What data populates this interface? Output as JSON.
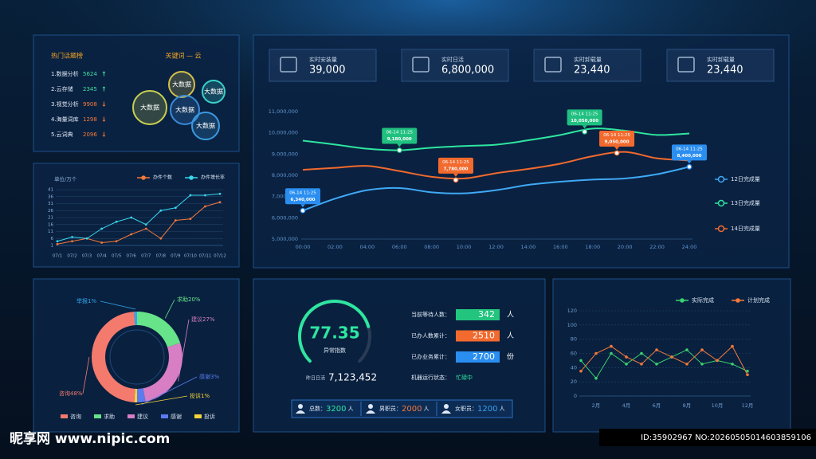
{
  "hot_topics": {
    "title": "热门话题榜",
    "items": [
      {
        "label": "1.数据分析",
        "value": "5624",
        "arrow": "↑",
        "color": "#3ee0a0"
      },
      {
        "label": "2.云存储",
        "value": "2345",
        "arrow": "↑",
        "color": "#3ee0a0"
      },
      {
        "label": "3.视觉分析",
        "value": "9908",
        "arrow": "↓",
        "color": "#f5793a"
      },
      {
        "label": "4.海量词库",
        "value": "1298",
        "arrow": "↓",
        "color": "#f5793a"
      },
      {
        "label": "5.云词典",
        "value": "2096",
        "arrow": "↓",
        "color": "#f5793a"
      }
    ]
  },
  "keyword_cloud": {
    "title": "关键词 — 云",
    "bubbles": [
      "大数据",
      "大数据",
      "大数据",
      "大数据",
      "大数据"
    ]
  },
  "stats": [
    {
      "label": "实时安装量",
      "value": "39,000"
    },
    {
      "label": "实时日活",
      "value": "6,800,000"
    },
    {
      "label": "实时卸载量",
      "value": "23,440"
    },
    {
      "label": "实时卸载量",
      "value": "23,440"
    }
  ],
  "chart_data": [
    {
      "type": "line",
      "y_unit_label": "单位/万个",
      "categories": [
        "07/1",
        "07/2",
        "07/3",
        "07/4",
        "07/5",
        "07/6",
        "07/7",
        "07/8",
        "07/9",
        "07/10",
        "07/11",
        "07/12"
      ],
      "series": [
        {
          "name": "办件个数",
          "color": "#f5793a",
          "values": [
            2,
            4,
            6,
            3,
            4,
            9,
            13,
            6,
            19,
            20,
            29,
            32
          ]
        },
        {
          "name": "办件增长率",
          "color": "#3ad8f0",
          "values": [
            4,
            7,
            6,
            13,
            18,
            21,
            16,
            26,
            28,
            37,
            37,
            38
          ]
        }
      ],
      "ylim": [
        1,
        41
      ],
      "yticks": [
        1,
        6,
        11,
        16,
        21,
        26,
        31,
        36,
        41
      ],
      "grid": true
    },
    {
      "type": "line",
      "x": [
        0,
        2,
        4,
        6,
        8,
        10,
        12,
        14,
        16,
        18,
        20,
        22,
        24
      ],
      "xlim": [
        0,
        24
      ],
      "xticks": [
        {
          "value": 0,
          "label": "00:00"
        },
        {
          "value": 2,
          "label": "02:00"
        },
        {
          "value": 4,
          "label": "04:00"
        },
        {
          "value": 6,
          "label": "06:00"
        },
        {
          "value": 8,
          "label": "08:00"
        },
        {
          "value": 10,
          "label": "10:00"
        },
        {
          "value": 12,
          "label": "12:00"
        },
        {
          "value": 14,
          "label": "14:00"
        },
        {
          "value": 16,
          "label": "16:00"
        },
        {
          "value": 18,
          "label": "18:00"
        },
        {
          "value": 20,
          "label": "20:00"
        },
        {
          "value": 22,
          "label": "22:00"
        },
        {
          "value": 24,
          "label": "24:00"
        }
      ],
      "ylim": [
        5000000,
        11000000
      ],
      "yticks": [
        {
          "value": 5000000,
          "label": "5,000,000"
        },
        {
          "value": 6000000,
          "label": "6,000,000"
        },
        {
          "value": 7000000,
          "label": "7,000,000"
        },
        {
          "value": 8000000,
          "label": "8,000,000"
        },
        {
          "value": 9000000,
          "label": "9,000,000"
        },
        {
          "value": 10000000,
          "label": "10,000,000"
        },
        {
          "value": 11000000,
          "label": "11,000,000"
        }
      ],
      "series": [
        {
          "name": "12日完成量",
          "color": "#3fa9f5",
          "values": [
            6340000,
            6900000,
            7300000,
            7400000,
            7200000,
            7150000,
            7300000,
            7550000,
            7700000,
            7800000,
            7850000,
            8050000,
            8400000
          ]
        },
        {
          "name": "13日完成量",
          "color": "#2ee6a0",
          "values": [
            9630000,
            9450000,
            9250000,
            9180000,
            9300000,
            9380000,
            9440000,
            9650000,
            9900000,
            10200000,
            10100000,
            9900000,
            9970000
          ]
        },
        {
          "name": "14日完成量",
          "color": "#f26a2e",
          "values": [
            8260000,
            8350000,
            8440000,
            8200000,
            7930000,
            7850000,
            8100000,
            8300000,
            8550000,
            8900000,
            9100000,
            8800000,
            8700000
          ]
        }
      ],
      "annotations": [
        {
          "time": "06-14 11:25",
          "x": 0,
          "value": 6340000,
          "label": "6,340,000",
          "color": "#2a8ef0"
        },
        {
          "time": "06-14 11:25",
          "x": 6,
          "value": 9180000,
          "label": "9,180,000",
          "color": "#20c080"
        },
        {
          "time": "06-14 11:25",
          "x": 9.5,
          "value": 7780000,
          "label": "7,780,000",
          "color": "#f26a2e"
        },
        {
          "time": "06-14 11:25",
          "x": 17.5,
          "value": 10050000,
          "label": "10,050,000",
          "color": "#20c080"
        },
        {
          "time": "06-14 11:25",
          "x": 19.5,
          "value": 9050000,
          "label": "9,050,000",
          "color": "#f26a2e"
        },
        {
          "time": "06-14 11:25",
          "x": 24,
          "value": 8400000,
          "label": "8,400,000",
          "color": "#2a8ef0"
        }
      ],
      "grid": false
    },
    {
      "type": "pie",
      "donut": true,
      "categories": [
        "求助",
        "建议",
        "感谢",
        "投诉",
        "咨询",
        "举报"
      ],
      "values": [
        20,
        27,
        3,
        1,
        48,
        1
      ],
      "value_labels": [
        "20%",
        "27%",
        "3%",
        "1%",
        "48%",
        "1%"
      ],
      "colors": [
        "#67e38a",
        "#d77ec4",
        "#5b7cf0",
        "#f5d33a",
        "#f47a6e",
        "#2fa8f0"
      ]
    },
    {
      "type": "gauge",
      "value": 77.35,
      "ylim": [
        0,
        100
      ],
      "label": "异常指数",
      "color": "#2ee6a0",
      "yesterday_label": "昨日日活",
      "yesterday_value": "7,123,452"
    },
    {
      "type": "line",
      "categories": [
        null,
        "2月",
        null,
        "4月",
        null,
        "6月",
        null,
        "8月",
        null,
        "10月",
        null,
        "12月"
      ],
      "series": [
        {
          "name": "实际完成",
          "color": "#3bd16f",
          "values": [
            50,
            25,
            60,
            45,
            60,
            45,
            55,
            65,
            45,
            50,
            45,
            35
          ]
        },
        {
          "name": "计划完成",
          "color": "#f5793a",
          "values": [
            35,
            60,
            70,
            55,
            45,
            65,
            55,
            45,
            65,
            50,
            70,
            30
          ]
        }
      ],
      "ylim": [
        0,
        120
      ],
      "yticks": [
        0,
        20,
        40,
        60,
        80,
        100,
        120
      ],
      "grid": true
    }
  ],
  "queue": {
    "rows": [
      {
        "label": "当前等待人数：",
        "value": "342",
        "unit": "人",
        "color": "#22c47e"
      },
      {
        "label": "已办人数累计：",
        "value": "2510",
        "unit": "人",
        "color": "#f26a2e"
      },
      {
        "label": "已办业务累计：",
        "value": "2700",
        "unit": "份",
        "color": "#2a8ef0"
      }
    ],
    "status_label": "机器运行状态：",
    "status": "忙碌中"
  },
  "staff": [
    {
      "label": "总数：",
      "value": "3200",
      "unit": "人",
      "color": "#2ee6a0"
    },
    {
      "label": "男职员：",
      "value": "2000",
      "unit": "人",
      "color": "#f5793a"
    },
    {
      "label": "女职员：",
      "value": "1200",
      "unit": "人",
      "color": "#3aa0f0"
    }
  ],
  "watermark": {
    "site": "昵享网 www.nipic.com",
    "id": "ID:35902967 NO:20260505014603859106"
  }
}
